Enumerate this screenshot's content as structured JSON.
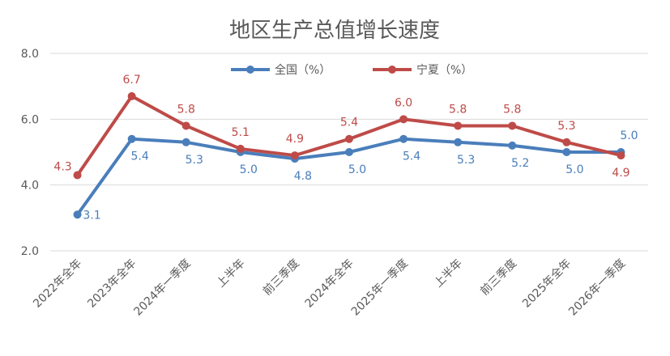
{
  "chart_data": {
    "type": "line",
    "title": "地区生产总值增长速度",
    "xlabel": "",
    "ylabel": "",
    "ylim": [
      2.0,
      8.0
    ],
    "yticks": [
      "2.0",
      "4.0",
      "6.0",
      "8.0"
    ],
    "grid": true,
    "legend_position": "top-center",
    "categories": [
      "2022年全年",
      "2023年全年",
      "2024年一季度",
      "上半年",
      "前三季度",
      "2024年全年",
      "2025年一季度",
      "上半年",
      "前三季度",
      "2025年全年",
      "2026年一季度"
    ],
    "series": [
      {
        "name": "全国（%）",
        "color": "#4A7EBB",
        "values": [
          3.1,
          5.4,
          5.3,
          5.0,
          4.8,
          5.0,
          5.4,
          5.3,
          5.2,
          5.0,
          5.0
        ],
        "labels": [
          "3.1",
          "5.4",
          "5.3",
          "5.0",
          "4.8",
          "5.0",
          "5.4",
          "5.3",
          "5.2",
          "5.0",
          "5.0"
        ]
      },
      {
        "name": "宁夏（%）",
        "color": "#BE4B48",
        "values": [
          4.3,
          6.7,
          5.8,
          5.1,
          4.9,
          5.4,
          6.0,
          5.8,
          5.8,
          5.3,
          4.9
        ],
        "labels": [
          "4.3",
          "6.7",
          "5.8",
          "5.1",
          "4.9",
          "5.4",
          "6.0",
          "5.8",
          "5.8",
          "5.3",
          "4.9"
        ]
      }
    ]
  }
}
